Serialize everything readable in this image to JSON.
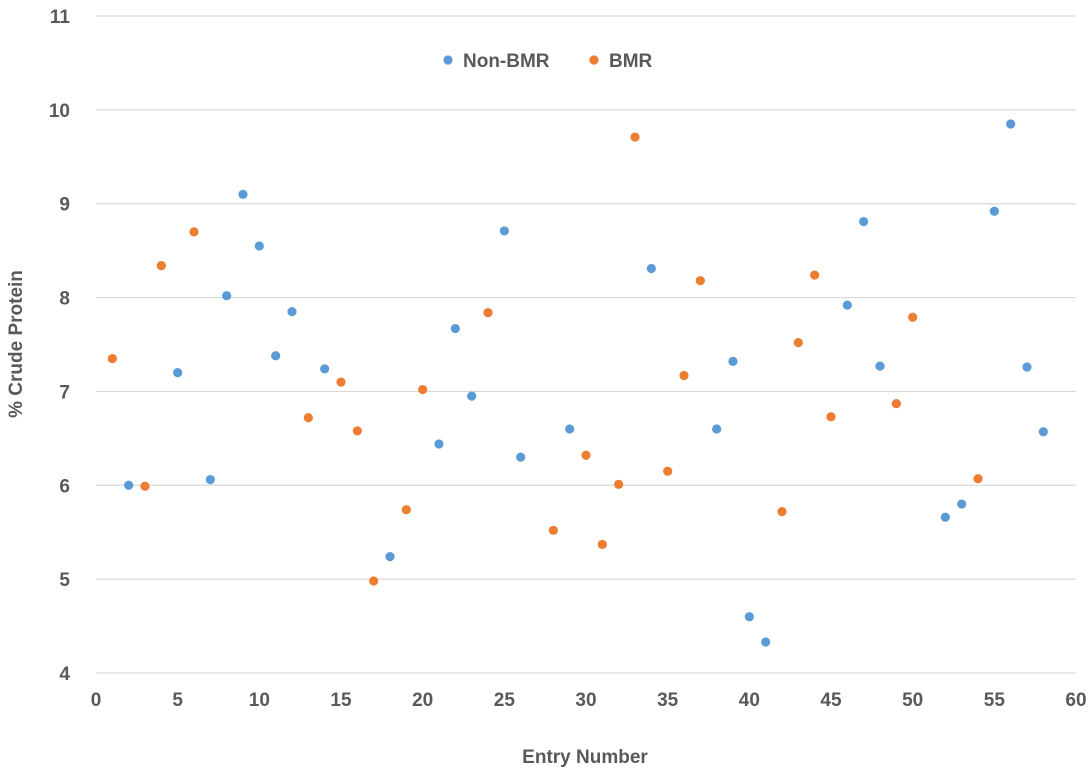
{
  "chart_data": {
    "type": "scatter",
    "title": "",
    "xlabel": "Entry Number",
    "ylabel": "% Crude Protein",
    "xlim": [
      0,
      60
    ],
    "ylim": [
      4,
      11
    ],
    "xticks": [
      0,
      5,
      10,
      15,
      20,
      25,
      30,
      35,
      40,
      45,
      50,
      55,
      60
    ],
    "yticks": [
      4,
      5,
      6,
      7,
      8,
      9,
      10,
      11
    ],
    "grid": "horizontal",
    "legend": "top-center",
    "series": [
      {
        "name": "Non-BMR",
        "color": "#5B9BD5",
        "x": [
          2,
          5,
          7,
          8,
          9,
          10,
          11,
          12,
          14,
          18,
          21,
          22,
          23,
          25,
          26,
          29,
          34,
          38,
          39,
          40,
          41,
          46,
          47,
          48,
          52,
          53,
          55,
          56,
          57,
          58
        ],
        "y": [
          6.0,
          7.2,
          6.06,
          8.02,
          9.1,
          8.55,
          7.38,
          7.85,
          7.24,
          5.24,
          6.44,
          7.67,
          6.95,
          8.71,
          6.3,
          6.6,
          8.31,
          6.6,
          7.32,
          4.6,
          4.33,
          7.92,
          8.81,
          7.27,
          5.66,
          5.8,
          8.92,
          9.85,
          7.26,
          6.57
        ]
      },
      {
        "name": "BMR",
        "color": "#ED7D31",
        "x": [
          1,
          3,
          4,
          6,
          13,
          15,
          16,
          17,
          19,
          20,
          24,
          28,
          30,
          31,
          32,
          33,
          35,
          36,
          37,
          42,
          43,
          44,
          45,
          49,
          50,
          54
        ],
        "y": [
          7.35,
          5.99,
          8.34,
          8.7,
          6.72,
          7.1,
          6.58,
          4.98,
          5.74,
          7.02,
          7.84,
          5.52,
          6.32,
          5.37,
          6.01,
          9.71,
          6.15,
          7.17,
          8.18,
          5.72,
          7.52,
          8.24,
          6.73,
          6.87,
          7.79,
          6.07
        ]
      }
    ]
  }
}
